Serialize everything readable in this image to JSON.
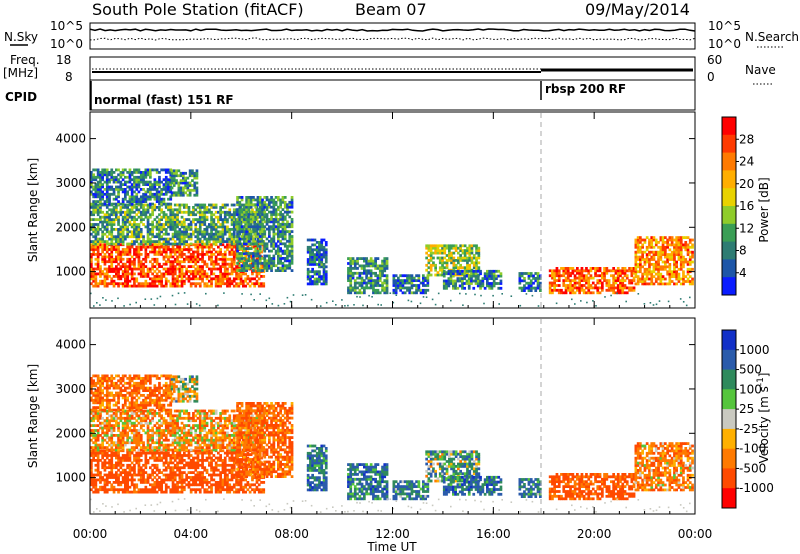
{
  "header": {
    "station": "South Pole Station (fitACF)",
    "beam": "Beam 07",
    "date": "09/May/2014"
  },
  "noise_panel": {
    "left_label": "N.Sky",
    "right_label": "N.Search",
    "left_ticks": [
      "10^5",
      "10^0"
    ],
    "right_ticks": [
      "10^5",
      "10^0"
    ]
  },
  "freq_panel": {
    "left_label_line1": "Freq.",
    "left_label_line2": "[MHz]",
    "left_ticks": [
      "18",
      "8"
    ],
    "right_label": "Nave",
    "right_ticks": [
      "60",
      "0"
    ]
  },
  "cpid_panel": {
    "label": "CPID",
    "modes": [
      {
        "name": "normal (fast) 151 RF",
        "start": "00:00"
      },
      {
        "name": "rbsp 200 RF",
        "start": "18:00"
      }
    ]
  },
  "power_panel": {
    "ylabel": "Slant Range [km]",
    "yticks": [
      "4000",
      "3000",
      "2000",
      "1000"
    ],
    "colorbar_label": "Power [dB]",
    "colorbar_ticks": [
      "28",
      "24",
      "20",
      "16",
      "12",
      "8",
      "4"
    ],
    "colors": [
      "#ff0000",
      "#ff3a00",
      "#ff7a00",
      "#ffae00",
      "#e8d200",
      "#8fcc2a",
      "#3a9e55",
      "#2e7c73",
      "#1d56a8",
      "#0a1cff"
    ]
  },
  "velocity_panel": {
    "ylabel": "Slant Range [km]",
    "yticks": [
      "4000",
      "3000",
      "2000",
      "1000"
    ],
    "colorbar_label": "Velocity [m s",
    "colorbar_label_sup": "-1",
    "colorbar_label_end": "]",
    "colorbar_ticks": [
      "1000",
      "500",
      "100",
      "25",
      "-25",
      "-100",
      "-500",
      "-1000"
    ],
    "colors": [
      "#1230c8",
      "#2a5bab",
      "#2f8a5c",
      "#55c53c",
      "#c9c9c0",
      "#ffb000",
      "#ff7a00",
      "#ff4a00",
      "#ff0000"
    ]
  },
  "x_axis": {
    "ticks": [
      "00:00",
      "04:00",
      "08:00",
      "12:00",
      "16:00",
      "20:00",
      "00:00"
    ],
    "label": "Time UT"
  },
  "chart_data": {
    "type": "heatmap",
    "title": "South Pole Station (fitACF)",
    "subtitle": "Beam 07",
    "date": "09/May/2014",
    "xlabel": "Time UT",
    "ylabel": "Slant Range [km]",
    "x_range_hours": [
      0,
      24
    ],
    "y_range_km": [
      180,
      4600
    ],
    "mode_change_hour": 18.0,
    "panels": [
      {
        "name": "Power",
        "quantity": "Power [dB]",
        "color_range": [
          0,
          30
        ]
      },
      {
        "name": "Velocity",
        "quantity": "Velocity [m s-1]",
        "color_range": [
          -1000,
          1000
        ]
      }
    ],
    "echo_regions": [
      {
        "t_start": 0.0,
        "t_end": 6.9,
        "r_start": 650,
        "r_end": 1600,
        "power_db": 26,
        "velocity": -450
      },
      {
        "t_start": 0.0,
        "t_end": 6.9,
        "r_start": 1600,
        "r_end": 2500,
        "power_db": 10,
        "velocity": -150
      },
      {
        "t_start": 0.0,
        "t_end": 3.2,
        "r_start": 2500,
        "r_end": 3300,
        "power_db": 6,
        "velocity": -300
      },
      {
        "t_start": 3.2,
        "t_end": 4.2,
        "r_start": 2700,
        "r_end": 3300,
        "power_db": 8,
        "velocity": 20
      },
      {
        "t_start": 5.8,
        "t_end": 8.0,
        "r_start": 1000,
        "r_end": 2700,
        "power_db": 8,
        "velocity": -300
      },
      {
        "t_start": 8.6,
        "t_end": 9.4,
        "r_start": 700,
        "r_end": 1700,
        "power_db": 5,
        "velocity": 300
      },
      {
        "t_start": 10.2,
        "t_end": 11.8,
        "r_start": 500,
        "r_end": 1300,
        "power_db": 8,
        "velocity": 300
      },
      {
        "t_start": 12.0,
        "t_end": 13.4,
        "r_start": 500,
        "r_end": 900,
        "power_db": 6,
        "velocity": 250
      },
      {
        "t_start": 13.3,
        "t_end": 15.4,
        "r_start": 900,
        "r_end": 1600,
        "power_db": 14,
        "velocity": 120
      },
      {
        "t_start": 14.0,
        "t_end": 16.3,
        "r_start": 600,
        "r_end": 1000,
        "power_db": 7,
        "velocity": 300
      },
      {
        "t_start": 17.0,
        "t_end": 17.9,
        "r_start": 550,
        "r_end": 950,
        "power_db": 6,
        "velocity": 250
      },
      {
        "t_start": 18.2,
        "t_end": 21.6,
        "r_start": 500,
        "r_end": 1100,
        "power_db": 25,
        "velocity": -400
      },
      {
        "t_start": 21.6,
        "t_end": 23.9,
        "r_start": 700,
        "r_end": 1750,
        "power_db": 22,
        "velocity": -200
      }
    ]
  }
}
